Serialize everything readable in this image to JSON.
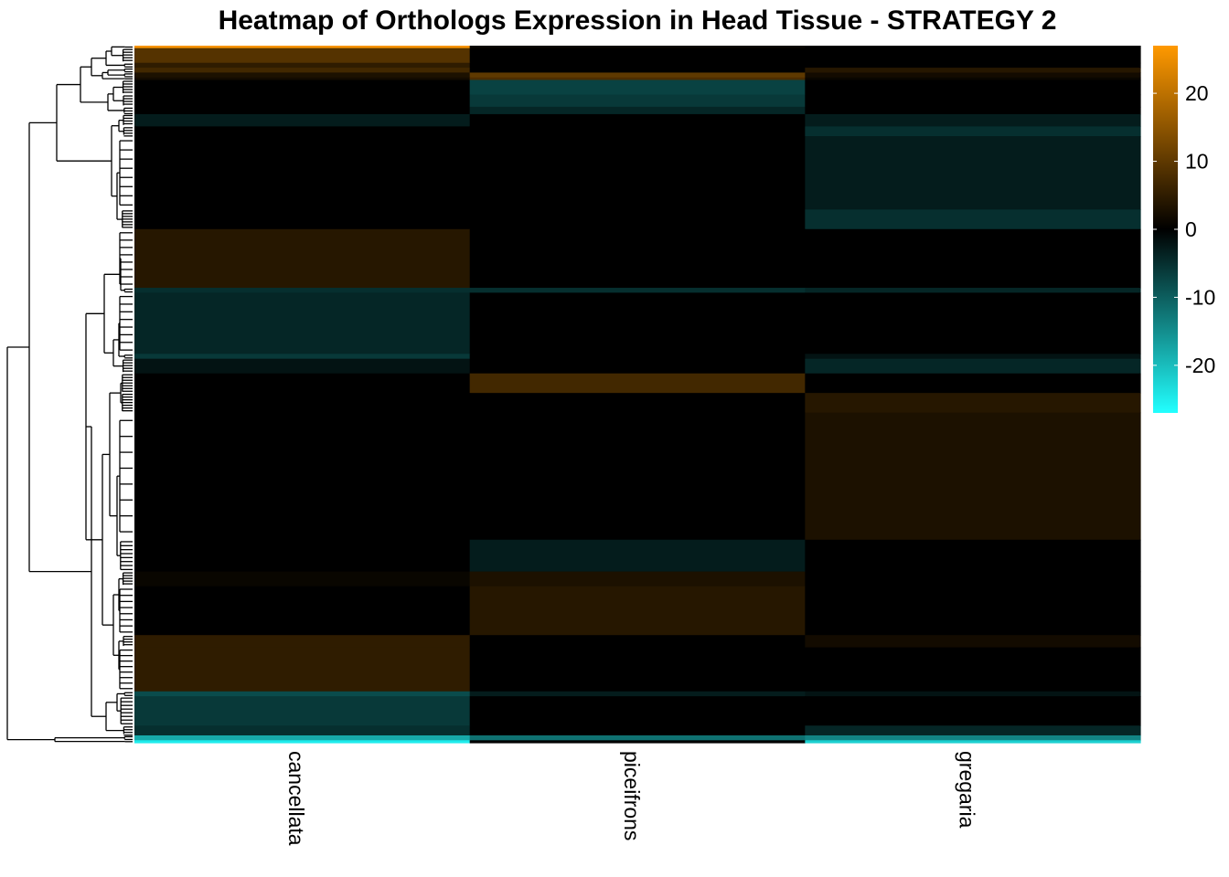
{
  "chart_data": {
    "type": "heatmap",
    "title": "Heatmap of Orthologs Expression in Head Tissue - STRATEGY 2",
    "columns": [
      "cancellata",
      "piceifrons",
      "gregaria"
    ],
    "color_scale": {
      "low": "#22ffff",
      "mid": "#000000",
      "high": "#ff9900",
      "min": -27,
      "max": 27,
      "ticks": [
        20,
        10,
        0,
        -10,
        -20
      ]
    },
    "row_blocks": [
      {
        "rows": 1,
        "values": [
          26,
          1,
          0
        ]
      },
      {
        "rows": 6,
        "values": [
          9,
          0,
          0
        ]
      },
      {
        "rows": 2,
        "values": [
          5,
          0,
          0
        ]
      },
      {
        "rows": 2,
        "values": [
          7,
          0,
          4
        ]
      },
      {
        "rows": 2,
        "values": [
          3,
          10,
          2
        ]
      },
      {
        "rows": 1,
        "values": [
          2,
          8,
          1
        ]
      },
      {
        "rows": 6,
        "values": [
          0,
          -7,
          0
        ]
      },
      {
        "rows": 5,
        "values": [
          0,
          -6,
          0
        ]
      },
      {
        "rows": 3,
        "values": [
          0,
          -4,
          0
        ]
      },
      {
        "rows": 5,
        "values": [
          -3,
          0,
          -3
        ]
      },
      {
        "rows": 4,
        "values": [
          0,
          0,
          -5
        ]
      },
      {
        "rows": 30,
        "values": [
          0,
          0,
          -3
        ]
      },
      {
        "rows": 8,
        "values": [
          0,
          0,
          -5
        ]
      },
      {
        "rows": 24,
        "values": [
          4,
          0,
          0
        ]
      },
      {
        "rows": 2,
        "values": [
          -5,
          -5,
          -4
        ]
      },
      {
        "rows": 25,
        "values": [
          -4,
          0,
          0
        ]
      },
      {
        "rows": 2,
        "values": [
          -6,
          0,
          -2
        ]
      },
      {
        "rows": 6,
        "values": [
          -2,
          0,
          -4
        ]
      },
      {
        "rows": 8,
        "values": [
          0,
          7,
          0
        ]
      },
      {
        "rows": 8,
        "values": [
          0,
          0,
          4
        ]
      },
      {
        "rows": 52,
        "values": [
          0,
          0,
          3
        ]
      },
      {
        "rows": 13,
        "values": [
          0,
          -3,
          0
        ]
      },
      {
        "rows": 6,
        "values": [
          1,
          3,
          0
        ]
      },
      {
        "rows": 20,
        "values": [
          0,
          4,
          0
        ]
      },
      {
        "rows": 5,
        "values": [
          5,
          0,
          2
        ]
      },
      {
        "rows": 18,
        "values": [
          5,
          0,
          0
        ]
      },
      {
        "rows": 2,
        "values": [
          -8,
          -3,
          -2
        ]
      },
      {
        "rows": 12,
        "values": [
          -6,
          0,
          0
        ]
      },
      {
        "rows": 4,
        "values": [
          -5,
          0,
          -4
        ]
      },
      {
        "rows": 2,
        "values": [
          -18,
          -12,
          -14
        ]
      },
      {
        "rows": 1,
        "values": [
          -25,
          0,
          -22
        ]
      }
    ]
  }
}
